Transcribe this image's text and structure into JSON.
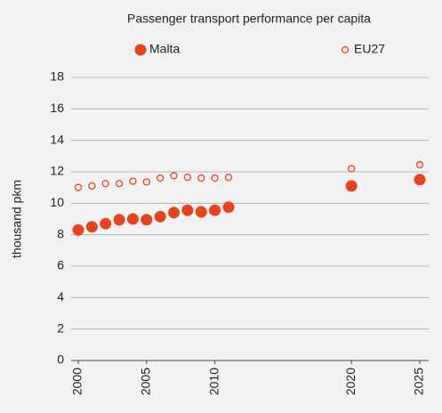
{
  "chart_data": {
    "type": "scatter",
    "title": "Passenger transport performance per capita",
    "y_label": "thousand pkm",
    "series": [
      {
        "name": "Malta",
        "color": "#e8431d",
        "filled": true,
        "x": [
          2000,
          2001,
          2002,
          2003,
          2004,
          2005,
          2006,
          2007,
          2008,
          2009,
          2010,
          2011,
          2020,
          2025
        ],
        "values": [
          8.3,
          8.5,
          8.7,
          8.95,
          9.0,
          8.95,
          9.15,
          9.4,
          9.55,
          9.45,
          9.55,
          9.75,
          11.1,
          11.5
        ]
      },
      {
        "name": "EU27",
        "color": "#e8431d",
        "filled": false,
        "x": [
          2000,
          2001,
          2002,
          2003,
          2004,
          2005,
          2006,
          2007,
          2008,
          2009,
          2010,
          2011,
          2020,
          2025
        ],
        "values": [
          11.0,
          11.1,
          11.25,
          11.25,
          11.4,
          11.35,
          11.6,
          11.75,
          11.65,
          11.6,
          11.6,
          11.65,
          12.2,
          12.45
        ]
      }
    ],
    "xlim": [
      2000,
      2025
    ],
    "xticks": [
      2000,
      2005,
      2010,
      2020,
      2025
    ],
    "ylim": [
      0,
      18
    ],
    "yticks": [
      0,
      2,
      4,
      6,
      8,
      10,
      12,
      14,
      16,
      18
    ],
    "grid": true
  }
}
